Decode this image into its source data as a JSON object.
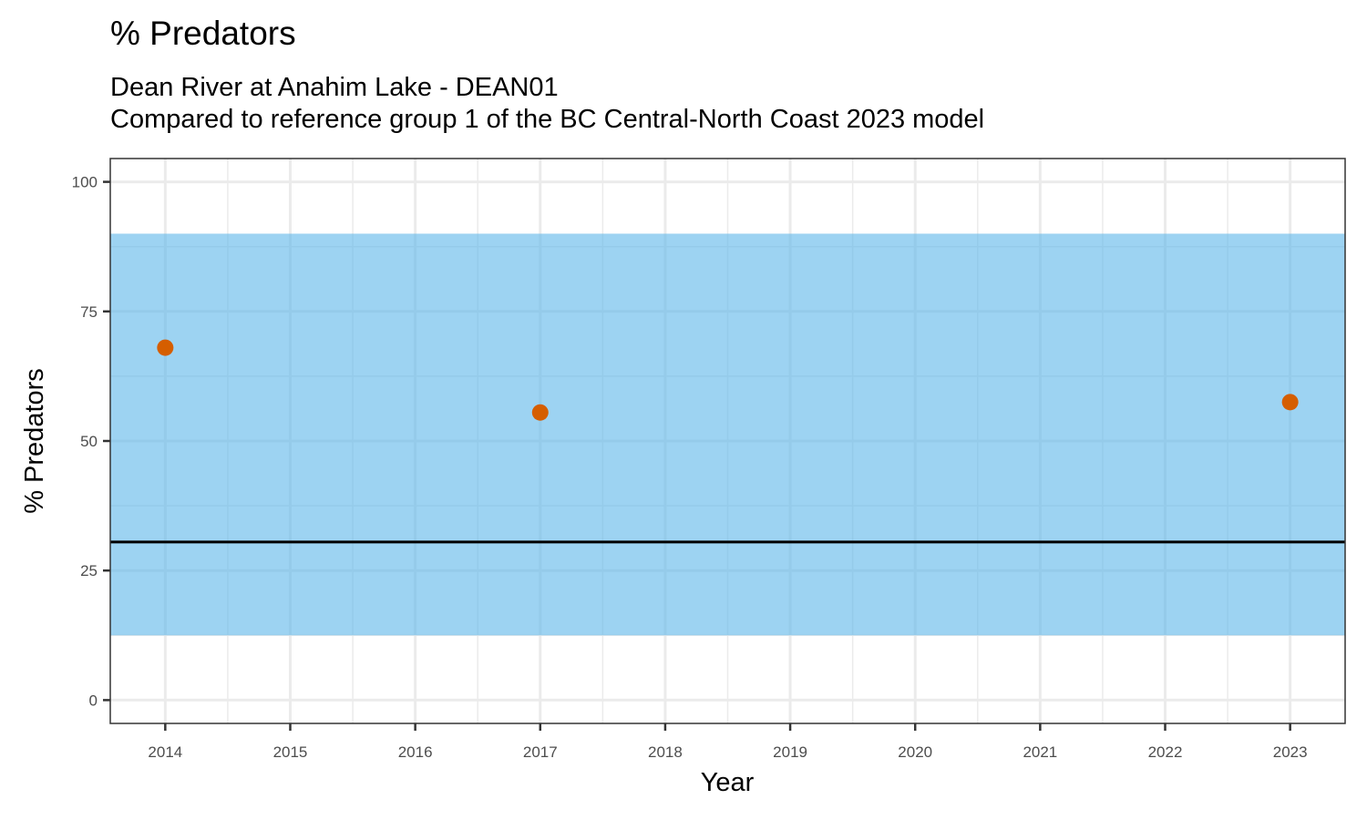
{
  "chart_data": {
    "type": "scatter",
    "title": "% Predators",
    "subtitle_lines": [
      "Dean River at Anahim Lake - DEAN01",
      "Compared to reference group 1 of the BC Central-North Coast 2023 model"
    ],
    "xlabel": "Year",
    "ylabel": "% Predators",
    "x_ticks": [
      "2014",
      "2015",
      "2016",
      "2017",
      "2018",
      "2019",
      "2020",
      "2021",
      "2022",
      "2023"
    ],
    "y_ticks": [
      "0",
      "25",
      "50",
      "75",
      "100"
    ],
    "xlim": [
      2013.56,
      2023.44
    ],
    "ylim": [
      -4.5,
      104.5
    ],
    "points": [
      {
        "x": 2014,
        "y": 68.0
      },
      {
        "x": 2017,
        "y": 55.5
      },
      {
        "x": 2023,
        "y": 57.5
      }
    ],
    "reference_band": {
      "lower": 12.5,
      "upper": 90.0
    },
    "reference_line": 30.5,
    "grid": true,
    "colors": {
      "point": "#D55E00",
      "band": "#56B4E9",
      "line": "#000000",
      "grid": "#EBEBEB",
      "panel_border": "#333333"
    }
  }
}
